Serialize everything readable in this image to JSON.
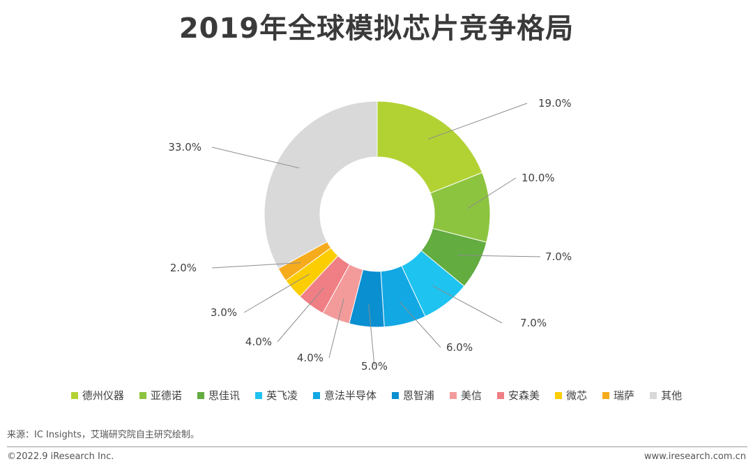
{
  "title": "2019年全球模拟芯片竞争格局",
  "chart_data": {
    "type": "pie",
    "title": "2019年全球模拟芯片竞争格局",
    "donut": true,
    "legend_position": "bottom",
    "series": [
      {
        "name": "德州仪器",
        "value": 19.0,
        "label": "19.0%",
        "color": "#b2d234"
      },
      {
        "name": "亚德诺",
        "value": 10.0,
        "label": "10.0%",
        "color": "#8dc43f"
      },
      {
        "name": "思佳讯",
        "value": 7.0,
        "label": "7.0%",
        "color": "#62ac40"
      },
      {
        "name": "英飞凌",
        "value": 7.0,
        "label": "7.0%",
        "color": "#1ec3f0"
      },
      {
        "name": "意法半导体",
        "value": 6.0,
        "label": "6.0%",
        "color": "#12a8e4"
      },
      {
        "name": "恩智浦",
        "value": 5.0,
        "label": "5.0%",
        "color": "#0a8fd1"
      },
      {
        "name": "美信",
        "value": 4.0,
        "label": "4.0%",
        "color": "#f39b9b"
      },
      {
        "name": "安森美",
        "value": 4.0,
        "label": "4.0%",
        "color": "#ef7f84"
      },
      {
        "name": "微芯",
        "value": 3.0,
        "label": "3.0%",
        "color": "#fccd00"
      },
      {
        "name": "瑞萨",
        "value": 2.0,
        "label": "2.0%",
        "color": "#f5ab1c"
      },
      {
        "name": "其他",
        "value": 33.0,
        "label": "33.0%",
        "color": "#d9d9d9"
      }
    ]
  },
  "footer": {
    "source": "来源：IC Insights，艾瑞研究院自主研究绘制。",
    "copyright": "©2022.9 iResearch Inc.",
    "website": "www.iresearch.com.cn"
  }
}
